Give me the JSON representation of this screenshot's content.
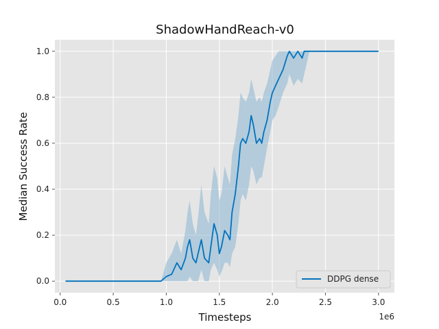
{
  "chart_data": {
    "type": "line",
    "title": "ShadowHandReach-v0",
    "xlabel": "Timesteps",
    "ylabel": "Median Success Rate",
    "x_scale_label": "1e6",
    "xlim": [
      -0.05,
      3.15
    ],
    "ylim": [
      -0.05,
      1.05
    ],
    "x_ticks": [
      0.0,
      0.5,
      1.0,
      1.5,
      2.0,
      2.5,
      3.0
    ],
    "x_tick_labels": [
      "0.0",
      "0.5",
      "1.0",
      "1.5",
      "2.0",
      "2.5",
      "3.0"
    ],
    "y_ticks": [
      0.0,
      0.2,
      0.4,
      0.6,
      0.8,
      1.0
    ],
    "y_tick_labels": [
      "0.0",
      "0.2",
      "0.4",
      "0.6",
      "0.8",
      "1.0"
    ],
    "grid": true,
    "legend_position": "bottom-right",
    "colors": {
      "line": "#0072bd",
      "band": "#8ab6d4",
      "plot_bg": "#e5e5e5",
      "grid": "#ffffff"
    },
    "series": [
      {
        "name": "DDPG dense",
        "x": [
          0.05,
          0.3,
          0.6,
          0.95,
          1.0,
          1.05,
          1.1,
          1.14,
          1.18,
          1.2,
          1.22,
          1.25,
          1.28,
          1.3,
          1.33,
          1.36,
          1.4,
          1.42,
          1.45,
          1.48,
          1.5,
          1.52,
          1.55,
          1.58,
          1.6,
          1.62,
          1.65,
          1.68,
          1.7,
          1.72,
          1.75,
          1.78,
          1.8,
          1.82,
          1.85,
          1.88,
          1.9,
          1.92,
          1.95,
          1.98,
          2.0,
          2.03,
          2.06,
          2.1,
          2.14,
          2.16,
          2.2,
          2.24,
          2.28,
          2.3,
          2.35,
          2.5,
          2.75,
          3.0
        ],
        "y": [
          0.0,
          0.0,
          0.0,
          0.0,
          0.02,
          0.03,
          0.08,
          0.05,
          0.1,
          0.15,
          0.18,
          0.1,
          0.08,
          0.12,
          0.18,
          0.1,
          0.08,
          0.15,
          0.25,
          0.2,
          0.12,
          0.15,
          0.22,
          0.2,
          0.18,
          0.3,
          0.38,
          0.5,
          0.6,
          0.62,
          0.6,
          0.65,
          0.72,
          0.68,
          0.6,
          0.62,
          0.6,
          0.65,
          0.7,
          0.78,
          0.82,
          0.85,
          0.88,
          0.92,
          0.98,
          1.0,
          0.97,
          1.0,
          0.97,
          1.0,
          1.0,
          1.0,
          1.0,
          1.0
        ],
        "lower": [
          0.0,
          0.0,
          0.0,
          0.0,
          0.0,
          0.0,
          0.0,
          0.0,
          0.0,
          0.0,
          0.02,
          0.0,
          0.0,
          0.0,
          0.05,
          0.0,
          0.0,
          0.05,
          0.08,
          0.05,
          0.02,
          0.04,
          0.08,
          0.08,
          0.06,
          0.12,
          0.15,
          0.25,
          0.35,
          0.38,
          0.35,
          0.42,
          0.5,
          0.48,
          0.42,
          0.45,
          0.45,
          0.5,
          0.58,
          0.65,
          0.7,
          0.72,
          0.76,
          0.82,
          0.86,
          0.9,
          0.85,
          0.88,
          0.86,
          0.9,
          1.0,
          1.0,
          1.0,
          1.0
        ],
        "upper": [
          0.0,
          0.0,
          0.0,
          0.0,
          0.08,
          0.12,
          0.18,
          0.12,
          0.22,
          0.3,
          0.35,
          0.25,
          0.2,
          0.28,
          0.42,
          0.3,
          0.25,
          0.38,
          0.5,
          0.45,
          0.35,
          0.38,
          0.5,
          0.45,
          0.42,
          0.55,
          0.62,
          0.72,
          0.82,
          0.8,
          0.78,
          0.82,
          0.88,
          0.84,
          0.78,
          0.8,
          0.78,
          0.82,
          0.86,
          0.92,
          0.96,
          0.98,
          1.0,
          1.0,
          1.0,
          1.0,
          1.0,
          1.0,
          1.0,
          1.0,
          1.0,
          1.0,
          1.0,
          1.0
        ]
      }
    ]
  }
}
